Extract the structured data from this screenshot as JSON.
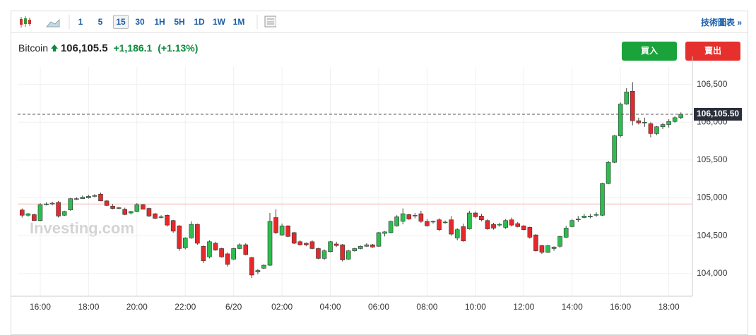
{
  "toolbar": {
    "intervals": [
      "1",
      "5",
      "15",
      "30",
      "1H",
      "5H",
      "1D",
      "1W",
      "1M"
    ],
    "active": 2,
    "link": "技術圖表 »"
  },
  "header": {
    "name": "Bitcoin",
    "price": "106,105.5",
    "change": "+1,186.1",
    "change_pct": "(+1.13%)",
    "buy": "買入",
    "sell": "賣出"
  },
  "chart_data": {
    "type": "candlestick",
    "watermark": "Investing.com",
    "categories": [
      null,
      null,
      null,
      "16:00",
      null,
      null,
      null,
      null,
      null,
      null,
      null,
      "18:00",
      null,
      null,
      null,
      null,
      null,
      null,
      null,
      "20:00",
      null,
      null,
      null,
      null,
      null,
      null,
      null,
      "22:00",
      null,
      null,
      null,
      null,
      null,
      null,
      null,
      "6/20",
      null,
      null,
      null,
      null,
      null,
      null,
      null,
      "02:00",
      null,
      null,
      null,
      null,
      null,
      null,
      null,
      "04:00",
      null,
      null,
      null,
      null,
      null,
      null,
      null,
      "06:00",
      null,
      null,
      null,
      null,
      null,
      null,
      null,
      "08:00",
      null,
      null,
      null,
      null,
      null,
      null,
      null,
      "10:00",
      null,
      null,
      null,
      null,
      null,
      null,
      null,
      "12:00",
      null,
      null,
      null,
      null,
      null,
      null,
      null,
      "14:00",
      null,
      null,
      null,
      null,
      null,
      null,
      null,
      "16:00",
      null,
      null,
      null,
      null,
      null,
      null,
      null,
      "18:00",
      null,
      null
    ],
    "open": [
      104840,
      104770,
      104780,
      104700,
      104910,
      104920,
      104940,
      104770,
      104840,
      104980,
      104990,
      105000,
      105020,
      105050,
      104960,
      104890,
      104860,
      104850,
      104800,
      104820,
      104910,
      104860,
      104790,
      104740,
      104770,
      104700,
      104630,
      104340,
      104470,
      104650,
      104360,
      104220,
      104400,
      104330,
      104260,
      104190,
      104330,
      104380,
      104210,
      104020,
      104070,
      104110,
      104740,
      104510,
      104630,
      104540,
      104420,
      104400,
      104420,
      104330,
      104200,
      104290,
      104390,
      104380,
      104190,
      104300,
      104330,
      104360,
      104380,
      104360,
      104530,
      104540,
      104630,
      104690,
      104780,
      104770,
      104790,
      104690,
      104680,
      104710,
      104680,
      104710,
      104470,
      104620,
      104590,
      104800,
      104760,
      104700,
      104650,
      104640,
      104610,
      104710,
      104660,
      104630,
      104610,
      104510,
      104370,
      104280,
      104330,
      104360,
      104480,
      104620,
      104710,
      104740,
      104750,
      104770,
      104770,
      105190,
      105470,
      105820,
      106240,
      106410,
      106020,
      105990,
      105980,
      105850,
      105940,
      105970,
      106010,
      106060
    ],
    "high": [
      104860,
      104800,
      104790,
      104930,
      104940,
      104950,
      104960,
      104830,
      105000,
      105010,
      105030,
      105040,
      105050,
      105070,
      104970,
      104920,
      104880,
      104870,
      104830,
      104930,
      104920,
      104870,
      104800,
      104770,
      104780,
      104710,
      104640,
      104480,
      104690,
      104660,
      104370,
      104440,
      104420,
      104340,
      104280,
      104340,
      104400,
      104400,
      104220,
      104060,
      104120,
      104800,
      104850,
      104660,
      104640,
      104550,
      104440,
      104410,
      104440,
      104340,
      104320,
      104430,
      104420,
      104390,
      104310,
      104340,
      104370,
      104400,
      104390,
      104550,
      104560,
      104700,
      104770,
      104860,
      104790,
      104800,
      104830,
      104720,
      104700,
      104730,
      104700,
      104760,
      104600,
      104660,
      104830,
      104820,
      104790,
      104720,
      104670,
      104670,
      104720,
      104740,
      104680,
      104640,
      104620,
      104520,
      104380,
      104380,
      104360,
      104500,
      104630,
      104720,
      104760,
      104790,
      104790,
      104810,
      105200,
      105490,
      105830,
      106260,
      106450,
      106530,
      106060,
      106060,
      106000,
      105950,
      105990,
      106040,
      106080,
      106130
    ],
    "low": [
      104740,
      104750,
      104700,
      104690,
      104900,
      104900,
      104740,
      104760,
      104830,
      104970,
      104990,
      104990,
      105010,
      104960,
      104890,
      104850,
      104850,
      104770,
      104780,
      104810,
      104850,
      104750,
      104720,
      104730,
      104620,
      104540,
      104300,
      104320,
      104460,
      104380,
      104140,
      104200,
      104300,
      104210,
      104090,
      104180,
      104320,
      104240,
      103940,
      103990,
      104060,
      104100,
      104520,
      104500,
      104480,
      104390,
      104370,
      104360,
      104320,
      104190,
      104180,
      104280,
      104350,
      104160,
      104180,
      104290,
      104320,
      104350,
      104340,
      104350,
      104490,
      104530,
      104620,
      104650,
      104710,
      104730,
      104670,
      104620,
      104660,
      104560,
      104660,
      104500,
      104440,
      104420,
      104580,
      104730,
      104690,
      104580,
      104580,
      104620,
      104590,
      104620,
      104610,
      104570,
      104460,
      104290,
      104260,
      104270,
      104300,
      104340,
      104470,
      104610,
      104680,
      104730,
      104730,
      104750,
      104760,
      105180,
      105460,
      105800,
      106230,
      105960,
      105970,
      105940,
      105800,
      105830,
      105910,
      105930,
      105990,
      106040
    ],
    "close": [
      104770,
      104790,
      104700,
      104910,
      104920,
      104930,
      104760,
      104820,
      104990,
      104990,
      105010,
      105020,
      105030,
      104960,
      104900,
      104860,
      104870,
      104780,
      104820,
      104910,
      104850,
      104760,
      104730,
      104750,
      104640,
      104560,
      104330,
      104470,
      104650,
      104400,
      104170,
      104420,
      104310,
      104220,
      104120,
      104330,
      104380,
      104250,
      103980,
      104040,
      104110,
      104690,
      104540,
      104630,
      104490,
      104400,
      104380,
      104380,
      104330,
      104200,
      104300,
      104420,
      104370,
      104180,
      104300,
      104330,
      104360,
      104380,
      104350,
      104540,
      104550,
      104690,
      104750,
      104790,
      104720,
      104770,
      104690,
      104630,
      104690,
      104580,
      104680,
      104520,
      104580,
      104430,
      104800,
      104750,
      104710,
      104590,
      104600,
      104650,
      104700,
      104640,
      104620,
      104580,
      104480,
      104300,
      104280,
      104370,
      104350,
      104490,
      104600,
      104700,
      104720,
      104760,
      104760,
      104780,
      105190,
      105470,
      105820,
      106240,
      106400,
      106020,
      105990,
      106000,
      105850,
      105940,
      105970,
      106010,
      106060,
      106105.5
    ],
    "up_color": "#2dbd4e",
    "down_color": "#e5292b",
    "last_price": {
      "value": 106105.5,
      "label": "106,105.50"
    },
    "reference_line": 104919.4,
    "ylim": [
      103700,
      106730
    ],
    "yticks": [
      {
        "value": 104000,
        "label": "104,000"
      },
      {
        "value": 104500,
        "label": "104,500"
      },
      {
        "value": 105000,
        "label": "105,000"
      },
      {
        "value": 105500,
        "label": "105,500"
      },
      {
        "value": 106000,
        "label": "106,000"
      },
      {
        "value": 106500,
        "label": "106,500"
      }
    ],
    "grid": true
  }
}
